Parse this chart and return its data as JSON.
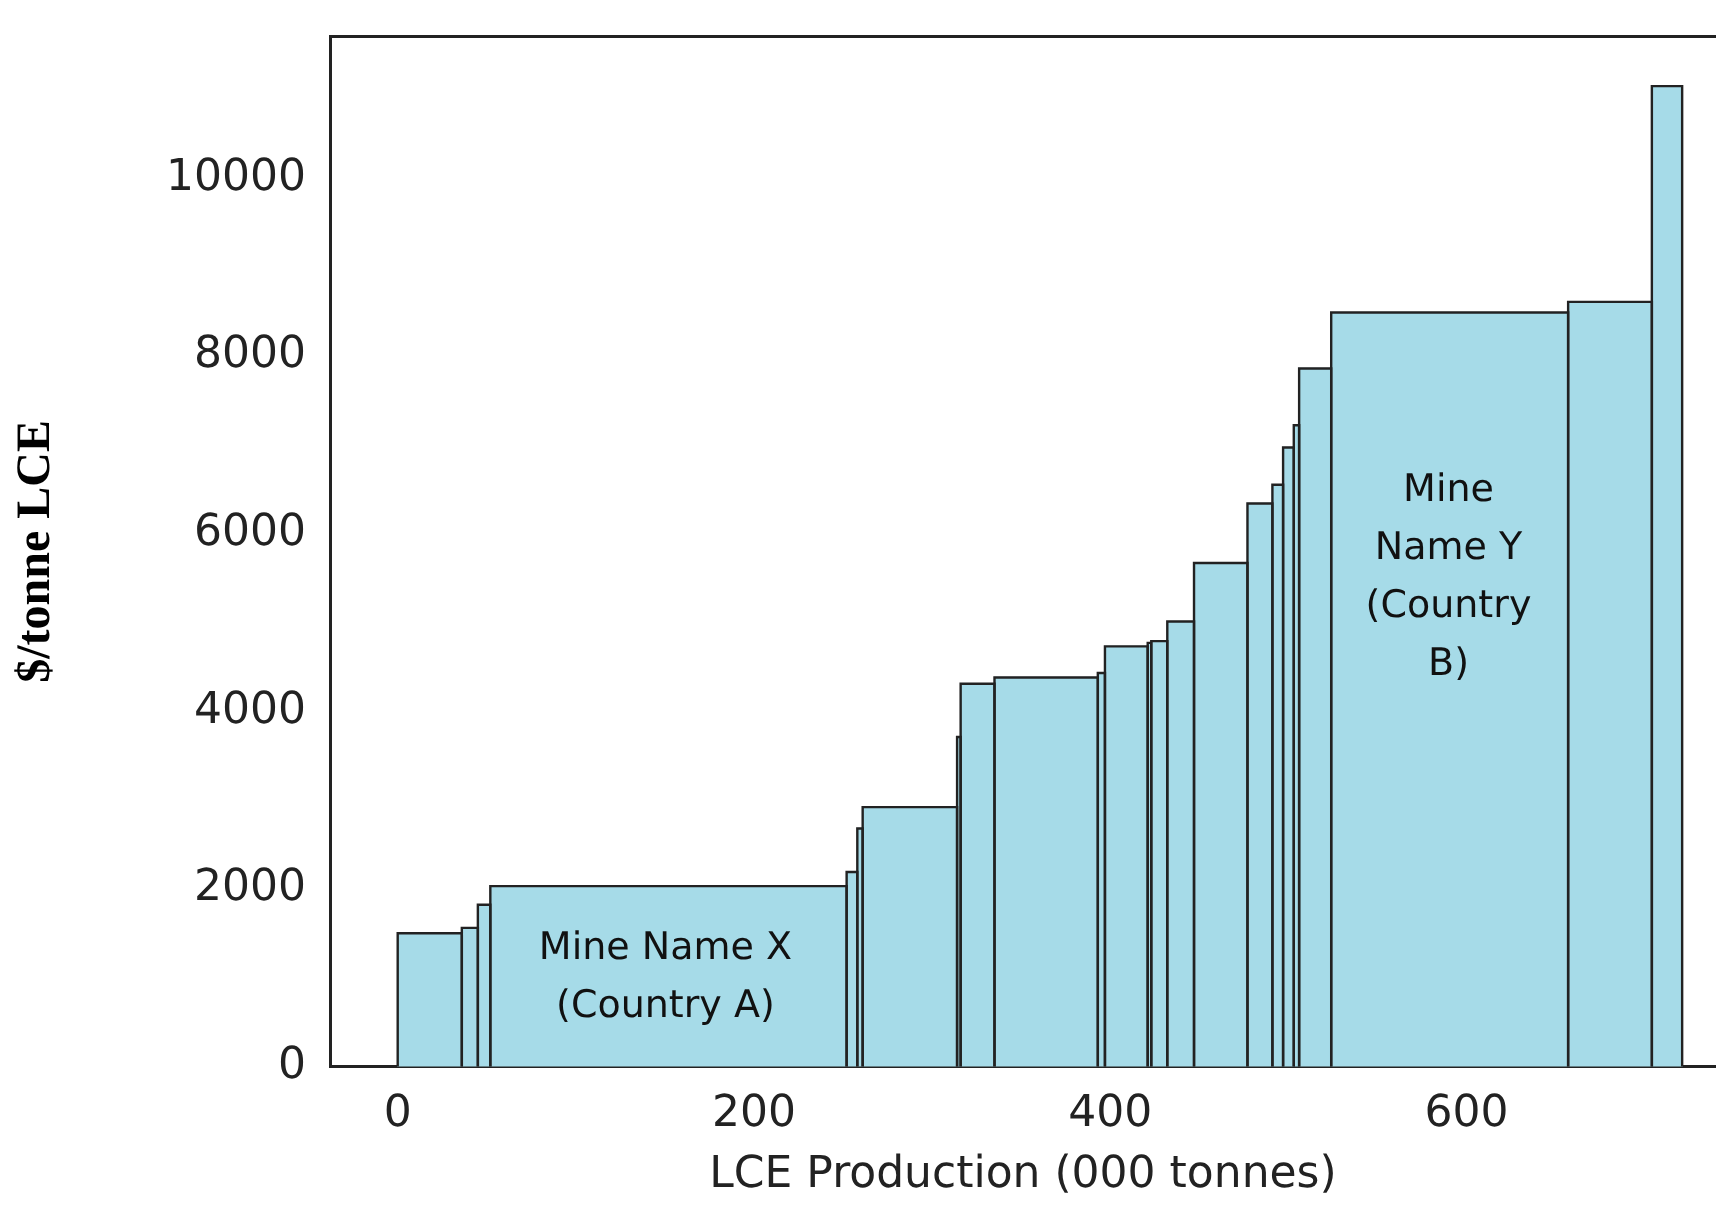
{
  "chart_data": {
    "type": "histogram",
    "xlabel": "LCE Production (000 tonnes)",
    "ylabel": "$/tonne LCE",
    "color": "#a6dbe8",
    "bins": [
      0,
      36,
      45,
      52,
      252,
      258,
      261,
      314,
      316,
      335,
      393,
      397,
      421,
      423,
      432,
      447,
      477,
      491,
      497,
      503,
      506,
      524,
      657,
      704,
      721
    ],
    "values": [
      1500,
      1560,
      1820,
      2030,
      2190,
      2680,
      2920,
      3710,
      4310,
      4380,
      4430,
      4730,
      4770,
      4790,
      5010,
      5670,
      6340,
      6550,
      6970,
      7220,
      7860,
      8490,
      8610,
      11040
    ],
    "xlim": [
      -38,
      740
    ],
    "ylim": [
      0,
      11600
    ],
    "xticks": [
      0,
      200,
      400,
      600
    ],
    "yticks": [
      0,
      2000,
      4000,
      6000,
      8000,
      10000
    ],
    "grid": false,
    "legend": false,
    "annotations": [
      "Mine Name X\n(Country A)",
      "Mine\nName Y\n(Country\nB)"
    ]
  }
}
